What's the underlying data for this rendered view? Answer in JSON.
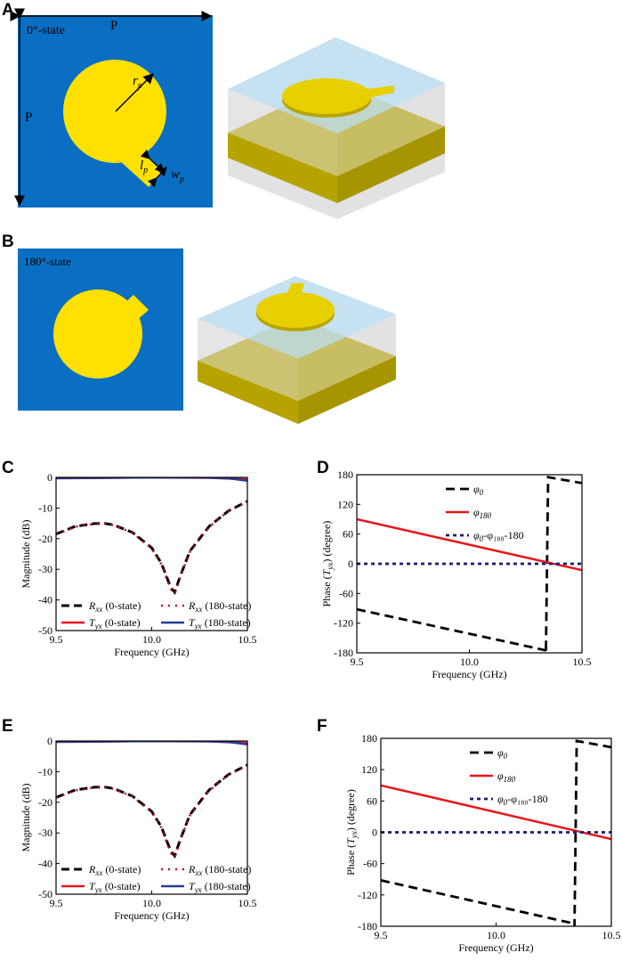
{
  "panels": {
    "A": "A",
    "B": "B",
    "C": "C",
    "D": "D",
    "E": "E",
    "F": "F"
  },
  "panel_a": {
    "state_label": "0°-state",
    "period_label": "P",
    "radius_label": "r",
    "radius_sub": "p",
    "length_label": "l",
    "length_sub": "p",
    "width_label": "w",
    "width_sub": "p"
  },
  "panel_b": {
    "state_label": "180°-state"
  },
  "colors": {
    "substrate": "#0a6fc2",
    "patch": "#ffe000",
    "ground": "#c8b400",
    "dielectric": "#bcdcef",
    "rxx": "#000000",
    "rxx180": "#c8002a",
    "tyx0": "#e8161b",
    "tyx180": "#233e99",
    "diff": "#1b1a74"
  },
  "chart_data": [
    {
      "id": "C",
      "type": "line",
      "xlabel": "Frequency (GHz)",
      "ylabel": "Magnitude (dB)",
      "xlim": [
        9.5,
        10.5
      ],
      "ylim": [
        -50,
        0
      ],
      "xticks": [
        "9.5",
        "10.0",
        "10.5"
      ],
      "yticks": [
        "0",
        "-10",
        "-20",
        "-30",
        "-40",
        "-50"
      ],
      "legend": [
        {
          "name": "R",
          "sub": "xx",
          "suffix": " (0-state)"
        },
        {
          "name": "R",
          "sub": "xx",
          "suffix": " (180-state)"
        },
        {
          "name": "T",
          "sub": "yx",
          "suffix": " (0-state)"
        },
        {
          "name": "T",
          "sub": "yx",
          "suffix": " (180-state)"
        }
      ],
      "series": [
        {
          "name": "Rxx (0-state)",
          "x": [
            9.5,
            9.6,
            9.7,
            9.75,
            9.8,
            9.9,
            10.0,
            10.05,
            10.1,
            10.12,
            10.15,
            10.2,
            10.3,
            10.4,
            10.5
          ],
          "y": [
            -18.5,
            -16.0,
            -15.1,
            -15.0,
            -15.5,
            -18.0,
            -23.0,
            -28.0,
            -36.0,
            -37.5,
            -32.0,
            -24.0,
            -16.0,
            -11.0,
            -7.8
          ]
        },
        {
          "name": "Rxx (180-state)",
          "x": [
            9.5,
            9.6,
            9.7,
            9.75,
            9.8,
            9.9,
            10.0,
            10.05,
            10.1,
            10.12,
            10.15,
            10.2,
            10.3,
            10.4,
            10.5
          ],
          "y": [
            -18.6,
            -16.1,
            -15.2,
            -15.1,
            -15.6,
            -18.1,
            -23.2,
            -28.3,
            -36.5,
            -38.0,
            -32.3,
            -24.2,
            -16.2,
            -11.1,
            -7.9
          ]
        },
        {
          "name": "Tyx (0-state)",
          "x": [
            9.5,
            9.7,
            9.9,
            10.1,
            10.3,
            10.5
          ],
          "y": [
            -0.3,
            -0.2,
            -0.1,
            -0.05,
            -0.15,
            -0.6
          ]
        },
        {
          "name": "Tyx (180-state)",
          "x": [
            9.5,
            9.7,
            9.9,
            10.1,
            10.3,
            10.4,
            10.5
          ],
          "y": [
            -0.2,
            -0.15,
            -0.05,
            -0.03,
            -0.1,
            -0.3,
            -1.1
          ]
        }
      ]
    },
    {
      "id": "D",
      "type": "line",
      "xlabel": "Frequency (GHz)",
      "ylabel": "Phase (T_yx) (degree)",
      "xlim": [
        9.5,
        10.5
      ],
      "ylim": [
        -180,
        180
      ],
      "xticks": [
        "9.5",
        "10.0",
        "10.5"
      ],
      "yticks": [
        "180",
        "120",
        "60",
        "0",
        "-60",
        "-120",
        "-180"
      ],
      "legend": [
        {
          "name": "φ",
          "sub": "0",
          "suffix": ""
        },
        {
          "name": "φ",
          "sub": "180",
          "suffix": ""
        },
        {
          "name": "φ",
          "sub": "0",
          "suffix": "-φ₁₈₀-180"
        }
      ],
      "series": [
        {
          "name": "φ0",
          "x": [
            9.5,
            10.34,
            10.34,
            10.35,
            10.5
          ],
          "y": [
            -92,
            -175,
            -180,
            175,
            163
          ]
        },
        {
          "name": "φ180",
          "x": [
            9.5,
            10.5
          ],
          "y": [
            90,
            -13
          ]
        },
        {
          "name": "φ0-φ180-180",
          "x": [
            9.5,
            10.5
          ],
          "y": [
            0,
            0
          ]
        }
      ]
    },
    {
      "id": "E",
      "type": "line",
      "xlabel": "Frequency (GHz)",
      "ylabel": "Magnitude (dB)",
      "xlim": [
        9.5,
        10.5
      ],
      "ylim": [
        -50,
        0
      ],
      "xticks": [
        "9.5",
        "10.0",
        "10.5"
      ],
      "yticks": [
        "0",
        "-10",
        "-20",
        "-30",
        "-40",
        "-50"
      ],
      "legend": [
        {
          "name": "R",
          "sub": "xx",
          "suffix": " (0-state)"
        },
        {
          "name": "R",
          "sub": "xx",
          "suffix": " (180-state)"
        },
        {
          "name": "T",
          "sub": "yx",
          "suffix": " (0-state)"
        },
        {
          "name": "T",
          "sub": "yx",
          "suffix": " (180-state)"
        }
      ],
      "series": [
        {
          "name": "Rxx (0-state)",
          "x": [
            9.5,
            9.6,
            9.7,
            9.75,
            9.8,
            9.9,
            10.0,
            10.05,
            10.1,
            10.12,
            10.15,
            10.2,
            10.3,
            10.4,
            10.5
          ],
          "y": [
            -18.4,
            -16.0,
            -15.1,
            -15.0,
            -15.5,
            -18.0,
            -23.0,
            -28.0,
            -36.0,
            -37.5,
            -32.0,
            -24.0,
            -16.0,
            -11.0,
            -7.8
          ]
        },
        {
          "name": "Rxx (180-state)",
          "x": [
            9.5,
            9.6,
            9.7,
            9.75,
            9.8,
            9.9,
            10.0,
            10.05,
            10.1,
            10.12,
            10.15,
            10.2,
            10.3,
            10.4,
            10.5
          ],
          "y": [
            -18.5,
            -16.1,
            -15.2,
            -15.1,
            -15.6,
            -18.1,
            -23.2,
            -28.3,
            -36.5,
            -38.0,
            -32.3,
            -24.2,
            -16.2,
            -11.1,
            -7.9
          ]
        },
        {
          "name": "Tyx (0-state)",
          "x": [
            9.5,
            9.7,
            9.9,
            10.1,
            10.3,
            10.5
          ],
          "y": [
            -0.3,
            -0.2,
            -0.1,
            -0.05,
            -0.15,
            -0.6
          ]
        },
        {
          "name": "Tyx (180-state)",
          "x": [
            9.5,
            9.7,
            9.9,
            10.1,
            10.3,
            10.4,
            10.5
          ],
          "y": [
            -0.2,
            -0.15,
            -0.05,
            -0.03,
            -0.1,
            -0.3,
            -1.1
          ]
        }
      ]
    },
    {
      "id": "F",
      "type": "line",
      "xlabel": "Frequency (GHz)",
      "ylabel": "Phase (T_yx) (degree)",
      "xlim": [
        9.5,
        10.5
      ],
      "ylim": [
        -180,
        180
      ],
      "xticks": [
        "9.5",
        "10.0",
        "10.5"
      ],
      "yticks": [
        "180",
        "120",
        "60",
        "0",
        "-60",
        "-120",
        "-180"
      ],
      "legend": [
        {
          "name": "φ",
          "sub": "0",
          "suffix": ""
        },
        {
          "name": "φ",
          "sub": "180",
          "suffix": ""
        },
        {
          "name": "φ",
          "sub": "0",
          "suffix": "-φ₁₈₀-180"
        }
      ],
      "series": [
        {
          "name": "φ0",
          "x": [
            9.5,
            10.34,
            10.34,
            10.35,
            10.5
          ],
          "y": [
            -92,
            -175,
            -180,
            175,
            163
          ]
        },
        {
          "name": "φ180",
          "x": [
            9.5,
            10.5
          ],
          "y": [
            90,
            -13
          ]
        },
        {
          "name": "φ0-φ180-180",
          "x": [
            9.5,
            10.5
          ],
          "y": [
            0,
            0
          ]
        }
      ]
    }
  ]
}
